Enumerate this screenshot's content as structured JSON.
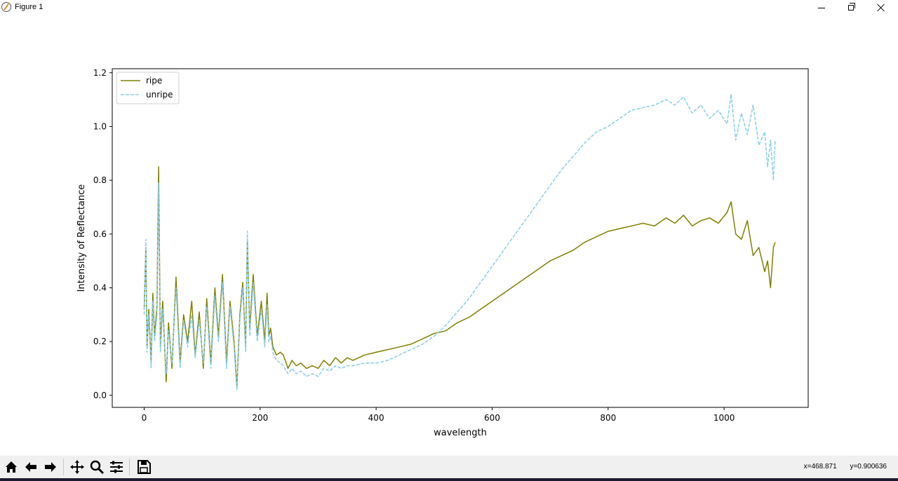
{
  "window": {
    "title": "Figure 1"
  },
  "toolbar": {
    "tools": [
      "home-icon",
      "back-icon",
      "forward-icon",
      "pan-icon",
      "zoom-icon",
      "configure-subplots-icon",
      "save-icon"
    ]
  },
  "status": {
    "x_readout": "x=468.871",
    "y_readout": "y=0.900636"
  },
  "chart_data": {
    "type": "line",
    "title": "",
    "xlabel": "wavelength",
    "ylabel": "Intensity of Reflectance",
    "xlim": [
      -55,
      1145
    ],
    "ylim": [
      -0.045,
      1.215
    ],
    "xticks": [
      0,
      200,
      400,
      600,
      800,
      1000
    ],
    "yticks": [
      0.0,
      0.2,
      0.4,
      0.6,
      0.8,
      1.0,
      1.2
    ],
    "xtick_labels": [
      "0",
      "200",
      "400",
      "600",
      "800",
      "1000"
    ],
    "ytick_labels": [
      "0.0",
      "0.2",
      "0.4",
      "0.6",
      "0.8",
      "1.0",
      "1.2"
    ],
    "legend": {
      "position": "upper-left"
    },
    "grid": false,
    "series": [
      {
        "name": "ripe",
        "color": "#808000",
        "style": "solid",
        "x": [
          0,
          3,
          5,
          8,
          12,
          15,
          18,
          22,
          25,
          28,
          32,
          38,
          42,
          48,
          55,
          62,
          68,
          75,
          82,
          88,
          95,
          102,
          108,
          115,
          122,
          128,
          135,
          142,
          148,
          155,
          160,
          165,
          170,
          175,
          178,
          182,
          188,
          195,
          202,
          208,
          212,
          215,
          218,
          222,
          228,
          235,
          240,
          248,
          255,
          262,
          270,
          280,
          290,
          300,
          310,
          320,
          330,
          340,
          350,
          360,
          380,
          400,
          420,
          440,
          460,
          480,
          500,
          520,
          540,
          560,
          580,
          600,
          620,
          640,
          660,
          680,
          700,
          720,
          740,
          760,
          780,
          800,
          820,
          840,
          860,
          880,
          900,
          915,
          930,
          945,
          960,
          975,
          990,
          1005,
          1012,
          1020,
          1030,
          1040,
          1050,
          1060,
          1070,
          1075,
          1080,
          1085,
          1088
        ],
        "y": [
          0.32,
          0.55,
          0.18,
          0.32,
          0.12,
          0.38,
          0.22,
          0.33,
          0.85,
          0.18,
          0.35,
          0.05,
          0.27,
          0.1,
          0.44,
          0.12,
          0.3,
          0.2,
          0.35,
          0.15,
          0.31,
          0.1,
          0.36,
          0.12,
          0.4,
          0.22,
          0.45,
          0.12,
          0.35,
          0.2,
          0.03,
          0.3,
          0.42,
          0.18,
          0.58,
          0.25,
          0.45,
          0.22,
          0.35,
          0.2,
          0.38,
          0.22,
          0.25,
          0.18,
          0.15,
          0.16,
          0.15,
          0.1,
          0.13,
          0.11,
          0.12,
          0.1,
          0.11,
          0.1,
          0.13,
          0.11,
          0.14,
          0.12,
          0.14,
          0.13,
          0.15,
          0.16,
          0.17,
          0.18,
          0.19,
          0.21,
          0.23,
          0.24,
          0.27,
          0.29,
          0.32,
          0.35,
          0.38,
          0.41,
          0.44,
          0.47,
          0.5,
          0.52,
          0.54,
          0.57,
          0.59,
          0.61,
          0.62,
          0.63,
          0.64,
          0.63,
          0.66,
          0.64,
          0.67,
          0.63,
          0.65,
          0.66,
          0.64,
          0.68,
          0.72,
          0.6,
          0.58,
          0.65,
          0.52,
          0.55,
          0.46,
          0.5,
          0.4,
          0.55,
          0.57
        ]
      },
      {
        "name": "unripe",
        "color": "#87ceeb",
        "style": "dashed",
        "x": [
          0,
          3,
          5,
          8,
          12,
          15,
          18,
          22,
          25,
          28,
          32,
          38,
          42,
          48,
          55,
          62,
          68,
          75,
          82,
          88,
          95,
          102,
          108,
          115,
          122,
          128,
          135,
          142,
          148,
          155,
          160,
          165,
          170,
          175,
          178,
          182,
          188,
          195,
          202,
          208,
          212,
          215,
          218,
          222,
          228,
          235,
          240,
          248,
          255,
          262,
          270,
          280,
          290,
          300,
          310,
          320,
          330,
          340,
          350,
          360,
          380,
          400,
          420,
          440,
          460,
          480,
          500,
          520,
          540,
          560,
          580,
          600,
          620,
          640,
          660,
          680,
          700,
          720,
          740,
          760,
          780,
          800,
          820,
          840,
          860,
          880,
          900,
          915,
          930,
          945,
          960,
          975,
          990,
          1005,
          1012,
          1020,
          1030,
          1040,
          1050,
          1060,
          1070,
          1075,
          1080,
          1085,
          1088
        ],
        "y": [
          0.3,
          0.58,
          0.16,
          0.3,
          0.1,
          0.35,
          0.2,
          0.3,
          0.79,
          0.16,
          0.32,
          0.08,
          0.24,
          0.12,
          0.4,
          0.1,
          0.28,
          0.18,
          0.3,
          0.14,
          0.28,
          0.12,
          0.33,
          0.1,
          0.37,
          0.2,
          0.42,
          0.1,
          0.33,
          0.18,
          0.02,
          0.28,
          0.4,
          0.16,
          0.61,
          0.22,
          0.42,
          0.2,
          0.32,
          0.18,
          0.34,
          0.2,
          0.22,
          0.16,
          0.13,
          0.12,
          0.11,
          0.08,
          0.1,
          0.08,
          0.09,
          0.07,
          0.08,
          0.07,
          0.1,
          0.09,
          0.11,
          0.1,
          0.11,
          0.11,
          0.12,
          0.12,
          0.13,
          0.15,
          0.17,
          0.19,
          0.22,
          0.26,
          0.31,
          0.36,
          0.42,
          0.48,
          0.54,
          0.6,
          0.66,
          0.72,
          0.78,
          0.84,
          0.89,
          0.94,
          0.98,
          1.0,
          1.03,
          1.06,
          1.07,
          1.08,
          1.1,
          1.08,
          1.11,
          1.05,
          1.08,
          1.03,
          1.06,
          1.01,
          1.12,
          0.95,
          1.05,
          0.97,
          1.08,
          0.93,
          0.98,
          0.85,
          0.95,
          0.8,
          0.95
        ]
      }
    ]
  }
}
